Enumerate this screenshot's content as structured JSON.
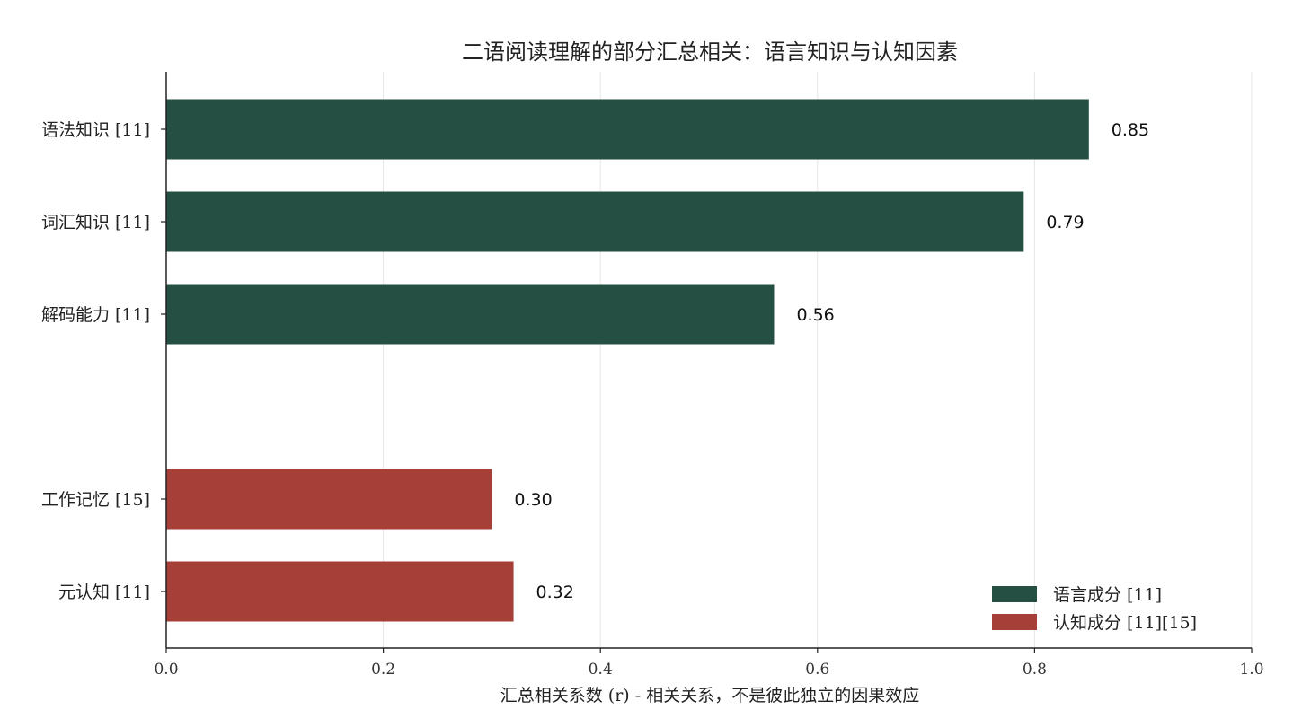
{
  "chart_data": {
    "type": "bar",
    "orientation": "horizontal",
    "title": "二语阅读理解的部分汇总相关：语言知识与认知因素",
    "xlabel": "汇总相关系数 (r) - 相关关系，不是彼此独立的因果效应",
    "ylabel": "",
    "xlim": [
      0.0,
      1.0
    ],
    "xticks": [
      "0.0",
      "0.2",
      "0.4",
      "0.6",
      "0.8",
      "1.0"
    ],
    "grid": "vertical",
    "legend_position": "lower-right",
    "categories": [
      "语法知识 [11]",
      "词汇知识 [11]",
      "解码能力 [11]",
      "工作记忆 [15]",
      "元认知 [11]"
    ],
    "values": [
      0.85,
      0.79,
      0.56,
      0.3,
      0.32
    ],
    "value_labels": [
      "0.85",
      "0.79",
      "0.56",
      "0.30",
      "0.32"
    ],
    "groups": [
      0,
      0,
      0,
      1,
      1
    ],
    "series": [
      {
        "name": "语言成分 [11]",
        "color": "#264f43"
      },
      {
        "name": "认知成分 [11][15]",
        "color": "#a63f37"
      }
    ]
  }
}
